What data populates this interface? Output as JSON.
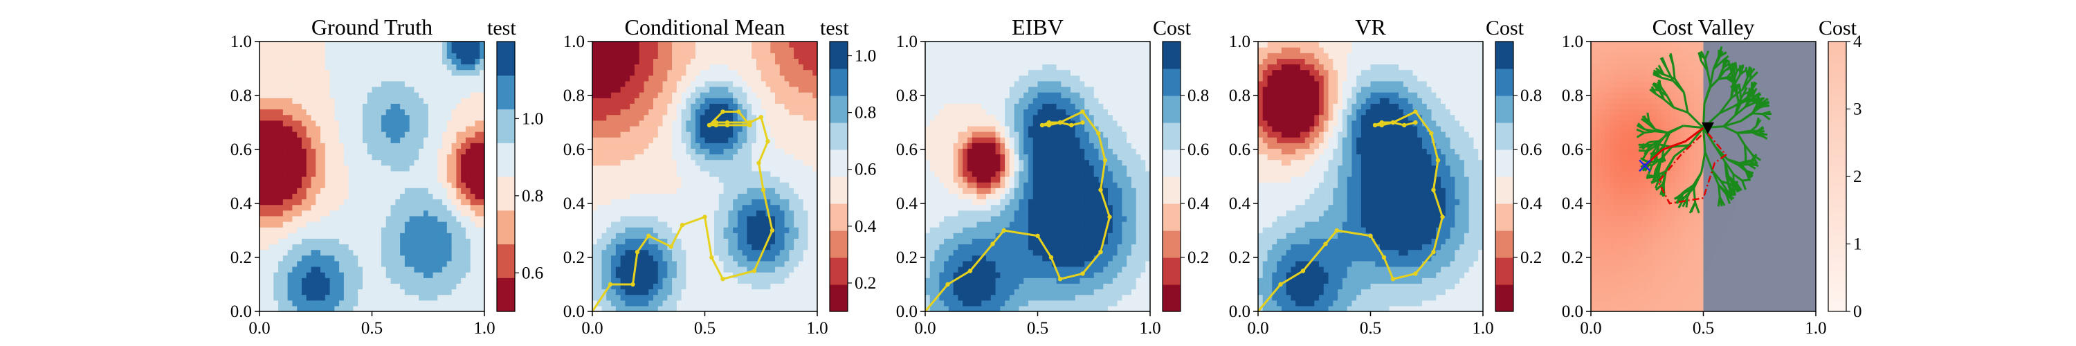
{
  "chart_data": [
    {
      "type": "heatmap",
      "title": "Ground Truth",
      "colorbar_label": "test",
      "colormap": "RdBu",
      "colorbar_ticks": [
        "0.6",
        "0.8",
        "1.0"
      ],
      "color_range": [
        0.5,
        1.2
      ],
      "levels": 8,
      "xlim": [
        0,
        1
      ],
      "ylim": [
        0,
        1
      ],
      "xticks": [
        "0.0",
        "0.5",
        "1.0"
      ],
      "yticks": [
        "0.0",
        "0.2",
        "0.4",
        "0.6",
        "0.8",
        "1.0"
      ],
      "features": [
        {
          "x": 0.05,
          "y": 0.55,
          "amplitude": -0.55,
          "radius": 0.13
        },
        {
          "x": 1.0,
          "y": 0.52,
          "amplitude": -0.5,
          "radius": 0.1
        },
        {
          "x": 0.92,
          "y": 0.98,
          "amplitude": 0.45,
          "radius": 0.06
        },
        {
          "x": 0.25,
          "y": 0.1,
          "amplitude": 0.3,
          "radius": 0.12
        },
        {
          "x": 0.75,
          "y": 0.25,
          "amplitude": 0.25,
          "radius": 0.14
        },
        {
          "x": 0.6,
          "y": 0.7,
          "amplitude": 0.2,
          "radius": 0.12
        }
      ]
    },
    {
      "type": "heatmap",
      "title": "Conditional Mean",
      "colorbar_label": "test",
      "colormap": "RdBu",
      "colorbar_ticks": [
        "0.2",
        "0.4",
        "0.6",
        "0.8",
        "1.0"
      ],
      "color_range": [
        0.1,
        1.05
      ],
      "levels": 10,
      "xlim": [
        0,
        1
      ],
      "ylim": [
        0,
        1
      ],
      "xticks": [
        "0.0",
        "0.5",
        "1.0"
      ],
      "yticks": [
        "0.0",
        "0.2",
        "0.4",
        "0.6",
        "0.8",
        "1.0"
      ],
      "features": [
        {
          "x": 0.55,
          "y": 0.7,
          "amplitude": 0.55,
          "radius": 0.1
        },
        {
          "x": 0.2,
          "y": 0.15,
          "amplitude": 0.5,
          "radius": 0.12
        },
        {
          "x": 0.75,
          "y": 0.3,
          "amplitude": 0.45,
          "radius": 0.12
        },
        {
          "x": 0.0,
          "y": 1.0,
          "amplitude": -0.55,
          "radius": 0.25
        },
        {
          "x": 1.0,
          "y": 1.0,
          "amplitude": -0.35,
          "radius": 0.18
        }
      ],
      "path": {
        "x": [
          0.0,
          0.08,
          0.18,
          0.2,
          0.25,
          0.35,
          0.4,
          0.5,
          0.53,
          0.58,
          0.72,
          0.8,
          0.76,
          0.74,
          0.78,
          0.75,
          0.7,
          0.6,
          0.55,
          0.52,
          0.55,
          0.6,
          0.7,
          0.65,
          0.58,
          0.52
        ],
        "y": [
          0.0,
          0.1,
          0.1,
          0.22,
          0.28,
          0.24,
          0.32,
          0.35,
          0.2,
          0.12,
          0.15,
          0.3,
          0.45,
          0.55,
          0.63,
          0.72,
          0.7,
          0.7,
          0.7,
          0.69,
          0.69,
          0.69,
          0.69,
          0.74,
          0.74,
          0.69
        ]
      }
    },
    {
      "type": "heatmap",
      "title": "EIBV",
      "colorbar_label": "Cost",
      "colormap": "RdBu",
      "colorbar_ticks": [
        "0.2",
        "0.4",
        "0.6",
        "0.8"
      ],
      "color_range": [
        0.0,
        1.0
      ],
      "levels": 10,
      "xlim": [
        0,
        1
      ],
      "ylim": [
        0,
        1
      ],
      "xticks": [
        "0.0",
        "0.5",
        "1.0"
      ],
      "yticks": [
        "0.0",
        "0.2",
        "0.4",
        "0.6",
        "0.8",
        "1.0"
      ],
      "features": [
        {
          "x": 0.27,
          "y": 0.55,
          "amplitude": -0.75,
          "radius": 0.08
        },
        {
          "x": 0.65,
          "y": 0.35,
          "amplitude": 0.6,
          "radius": 0.2
        },
        {
          "x": 0.2,
          "y": 0.1,
          "amplitude": 0.45,
          "radius": 0.15
        },
        {
          "x": 0.55,
          "y": 0.7,
          "amplitude": 0.4,
          "radius": 0.12
        }
      ],
      "path": {
        "x": [
          0.0,
          0.1,
          0.2,
          0.3,
          0.35,
          0.5,
          0.56,
          0.6,
          0.7,
          0.78,
          0.82,
          0.78,
          0.8,
          0.77,
          0.7,
          0.6,
          0.55,
          0.52,
          0.55,
          0.6,
          0.65,
          0.7
        ],
        "y": [
          0.0,
          0.1,
          0.15,
          0.25,
          0.3,
          0.28,
          0.2,
          0.12,
          0.14,
          0.22,
          0.35,
          0.45,
          0.56,
          0.66,
          0.74,
          0.7,
          0.7,
          0.69,
          0.69,
          0.7,
          0.69,
          0.7
        ]
      }
    },
    {
      "type": "heatmap",
      "title": "VR",
      "colorbar_label": "Cost",
      "colormap": "RdBu",
      "colorbar_ticks": [
        "0.2",
        "0.4",
        "0.6",
        "0.8"
      ],
      "color_range": [
        0.0,
        1.0
      ],
      "levels": 10,
      "xlim": [
        0,
        1
      ],
      "ylim": [
        0,
        1
      ],
      "xticks": [
        "0.0",
        "0.5",
        "1.0"
      ],
      "yticks": [
        "0.0",
        "0.2",
        "0.4",
        "0.6",
        "0.8",
        "1.0"
      ],
      "features": [
        {
          "x": 0.15,
          "y": 0.78,
          "amplitude": -0.75,
          "radius": 0.12
        },
        {
          "x": 0.65,
          "y": 0.4,
          "amplitude": 0.6,
          "radius": 0.2
        },
        {
          "x": 0.2,
          "y": 0.1,
          "amplitude": 0.45,
          "radius": 0.15
        },
        {
          "x": 0.55,
          "y": 0.7,
          "amplitude": 0.4,
          "radius": 0.12
        }
      ],
      "path": {
        "x": [
          0.0,
          0.1,
          0.2,
          0.3,
          0.35,
          0.5,
          0.56,
          0.6,
          0.7,
          0.78,
          0.82,
          0.78,
          0.8,
          0.77,
          0.7,
          0.6,
          0.55,
          0.52,
          0.55,
          0.6,
          0.65,
          0.7
        ],
        "y": [
          0.0,
          0.1,
          0.15,
          0.25,
          0.3,
          0.28,
          0.2,
          0.12,
          0.14,
          0.22,
          0.35,
          0.45,
          0.56,
          0.66,
          0.74,
          0.7,
          0.7,
          0.69,
          0.69,
          0.7,
          0.69,
          0.7
        ]
      }
    },
    {
      "type": "heatmap",
      "title": "Cost Valley",
      "colorbar_label": "Cost",
      "colormap": "Reds",
      "colorbar_ticks": [
        "0",
        "1",
        "2",
        "3",
        "4"
      ],
      "color_range": [
        0,
        4
      ],
      "xlim": [
        0,
        1
      ],
      "ylim": [
        0,
        1
      ],
      "xticks": [
        "0.0",
        "0.5",
        "1.0"
      ],
      "yticks": [
        "0.0",
        "0.2",
        "0.4",
        "0.6",
        "0.8",
        "1.0"
      ],
      "features": [
        {
          "x": 0.2,
          "y": 0.62,
          "amplitude": 1.2,
          "radius": 0.18
        },
        {
          "x": 0.05,
          "y": 0.3,
          "amplitude": 0.4,
          "radius": 0.2
        }
      ],
      "shaded_region_x": [
        0.5,
        1.0
      ],
      "tree_origin": {
        "x": 0.5,
        "y": 0.68
      },
      "marker_triangle": {
        "x": 0.52,
        "y": 0.68
      },
      "marker_x": {
        "x": 0.24,
        "y": 0.54
      },
      "red_path": {
        "x": [
          0.24,
          0.32,
          0.42,
          0.5
        ],
        "y": [
          0.54,
          0.6,
          0.63,
          0.68
        ]
      },
      "dashdot_polygon": {
        "x": [
          0.52,
          0.6,
          0.55,
          0.5,
          0.35,
          0.3,
          0.4,
          0.5
        ],
        "y": [
          0.66,
          0.58,
          0.55,
          0.42,
          0.4,
          0.48,
          0.58,
          0.66
        ]
      }
    }
  ]
}
